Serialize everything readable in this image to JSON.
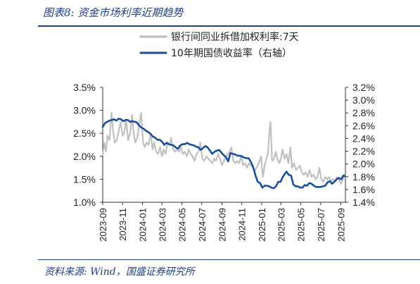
{
  "header": {
    "title": "图表8:  资金市场利率近期趋势"
  },
  "footer": {
    "source": "资料来源:  Wind，国盛证券研究所"
  },
  "colors": {
    "accent": "#1f3f86",
    "series_ibor": "#c0c0c0",
    "series_bond": "#1a4e9e"
  },
  "chart_data": {
    "type": "line",
    "legend_position": "top-center",
    "grid": false,
    "x_ticks": [
      "2023-09",
      "2023-11",
      "2024-01",
      "2024-03",
      "2024-05",
      "2024-07",
      "2024-09",
      "2024-11",
      "2025-01",
      "2025-03",
      "2025-05",
      "2025-07",
      "2025-09"
    ],
    "xlim": [
      "2023-09-01",
      "2025-09-15"
    ],
    "left_axis": {
      "ylim": [
        1.0,
        3.5
      ],
      "ticks": [
        "1.0%",
        "1.5%",
        "2.0%",
        "2.5%",
        "3.0%",
        "3.5%"
      ]
    },
    "right_axis": {
      "ylim": [
        1.4,
        3.2
      ],
      "ticks": [
        "1.4%",
        "1.6%",
        "1.8%",
        "2.0%",
        "2.2%",
        "2.4%",
        "2.6%",
        "2.8%",
        "3.0%",
        "3.2%"
      ]
    },
    "series": [
      {
        "name": "银行间同业拆借加权利率:7天",
        "axis": "left",
        "color": "#c0c0c0",
        "points": [
          [
            "2023-09-01",
            2.02
          ],
          [
            "2023-09-06",
            2.3
          ],
          [
            "2023-09-11",
            2.1
          ],
          [
            "2023-09-16",
            2.45
          ],
          [
            "2023-09-22",
            2.35
          ],
          [
            "2023-09-28",
            2.95
          ],
          [
            "2023-10-03",
            2.55
          ],
          [
            "2023-10-08",
            2.3
          ],
          [
            "2023-10-14",
            2.35
          ],
          [
            "2023-10-20",
            2.55
          ],
          [
            "2023-10-26",
            2.75
          ],
          [
            "2023-11-01",
            2.45
          ],
          [
            "2023-11-06",
            2.5
          ],
          [
            "2023-11-12",
            2.8
          ],
          [
            "2023-11-18",
            2.35
          ],
          [
            "2023-11-24",
            2.5
          ],
          [
            "2023-11-30",
            2.9
          ],
          [
            "2023-12-05",
            2.5
          ],
          [
            "2023-12-10",
            2.3
          ],
          [
            "2023-12-16",
            2.4
          ],
          [
            "2023-12-22",
            2.7
          ],
          [
            "2023-12-28",
            2.95
          ],
          [
            "2024-01-03",
            2.3
          ],
          [
            "2024-01-08",
            2.2
          ],
          [
            "2024-01-14",
            2.3
          ],
          [
            "2024-01-20",
            2.25
          ],
          [
            "2024-01-26",
            2.5
          ],
          [
            "2024-02-01",
            2.15
          ],
          [
            "2024-02-06",
            2.3
          ],
          [
            "2024-02-12",
            2.1
          ],
          [
            "2024-02-18",
            2.05
          ],
          [
            "2024-02-24",
            2.2
          ],
          [
            "2024-03-01",
            2.0
          ],
          [
            "2024-03-06",
            2.15
          ],
          [
            "2024-03-12",
            2.05
          ],
          [
            "2024-03-18",
            2.3
          ],
          [
            "2024-03-24",
            2.25
          ],
          [
            "2024-03-29",
            2.4
          ],
          [
            "2024-04-04",
            2.15
          ],
          [
            "2024-04-10",
            2.1
          ],
          [
            "2024-04-16",
            2.15
          ],
          [
            "2024-04-22",
            2.1
          ],
          [
            "2024-04-28",
            2.2
          ],
          [
            "2024-05-04",
            2.05
          ],
          [
            "2024-05-10",
            2.1
          ],
          [
            "2024-05-16",
            2.0
          ],
          [
            "2024-05-22",
            2.15
          ],
          [
            "2024-05-28",
            2.05
          ],
          [
            "2024-06-03",
            2.0
          ],
          [
            "2024-06-09",
            1.9
          ],
          [
            "2024-06-15",
            2.05
          ],
          [
            "2024-06-21",
            2.1
          ],
          [
            "2024-06-27",
            2.3
          ],
          [
            "2024-07-03",
            1.95
          ],
          [
            "2024-07-09",
            1.9
          ],
          [
            "2024-07-15",
            2.0
          ],
          [
            "2024-07-21",
            1.95
          ],
          [
            "2024-07-27",
            1.9
          ],
          [
            "2024-08-02",
            1.85
          ],
          [
            "2024-08-08",
            1.95
          ],
          [
            "2024-08-14",
            1.9
          ],
          [
            "2024-08-20",
            2.05
          ],
          [
            "2024-08-26",
            1.95
          ],
          [
            "2024-09-01",
            1.8
          ],
          [
            "2024-09-07",
            1.9
          ],
          [
            "2024-09-13",
            2.0
          ],
          [
            "2024-09-19",
            2.05
          ],
          [
            "2024-09-25",
            2.1
          ],
          [
            "2024-09-30",
            2.2
          ],
          [
            "2024-10-06",
            1.9
          ],
          [
            "2024-10-12",
            1.85
          ],
          [
            "2024-10-18",
            1.9
          ],
          [
            "2024-10-24",
            1.85
          ],
          [
            "2024-10-30",
            2.0
          ],
          [
            "2024-11-05",
            1.8
          ],
          [
            "2024-11-11",
            1.85
          ],
          [
            "2024-11-17",
            1.75
          ],
          [
            "2024-11-23",
            1.85
          ],
          [
            "2024-11-29",
            1.8
          ],
          [
            "2024-12-05",
            1.75
          ],
          [
            "2024-12-11",
            1.7
          ],
          [
            "2024-12-17",
            1.75
          ],
          [
            "2024-12-23",
            1.85
          ],
          [
            "2024-12-30",
            2.0
          ],
          [
            "2025-01-05",
            1.55
          ],
          [
            "2025-01-10",
            1.8
          ],
          [
            "2025-01-15",
            1.95
          ],
          [
            "2025-01-20",
            2.05
          ],
          [
            "2025-01-25",
            2.55
          ],
          [
            "2025-01-28",
            2.75
          ],
          [
            "2025-02-02",
            1.9
          ],
          [
            "2025-02-08",
            1.95
          ],
          [
            "2025-02-13",
            2.1
          ],
          [
            "2025-02-18",
            1.95
          ],
          [
            "2025-02-24",
            1.85
          ],
          [
            "2025-03-01",
            1.95
          ],
          [
            "2025-03-06",
            2.15
          ],
          [
            "2025-03-12",
            1.95
          ],
          [
            "2025-03-18",
            2.05
          ],
          [
            "2025-03-24",
            1.85
          ],
          [
            "2025-03-30",
            2.2
          ],
          [
            "2025-04-04",
            1.75
          ],
          [
            "2025-04-10",
            1.85
          ],
          [
            "2025-04-16",
            1.7
          ],
          [
            "2025-04-22",
            1.75
          ],
          [
            "2025-04-28",
            1.8
          ],
          [
            "2025-05-04",
            1.65
          ],
          [
            "2025-05-10",
            1.6
          ],
          [
            "2025-05-16",
            1.65
          ],
          [
            "2025-05-22",
            1.55
          ],
          [
            "2025-05-28",
            1.7
          ],
          [
            "2025-06-03",
            1.55
          ],
          [
            "2025-06-09",
            1.6
          ],
          [
            "2025-06-15",
            1.5
          ],
          [
            "2025-06-21",
            1.55
          ],
          [
            "2025-06-27",
            1.75
          ],
          [
            "2025-07-03",
            1.5
          ],
          [
            "2025-07-09",
            1.45
          ],
          [
            "2025-07-15",
            1.55
          ],
          [
            "2025-07-21",
            1.5
          ],
          [
            "2025-07-27",
            1.55
          ],
          [
            "2025-08-02",
            1.45
          ],
          [
            "2025-08-08",
            1.5
          ],
          [
            "2025-08-14",
            1.45
          ],
          [
            "2025-08-20",
            1.55
          ],
          [
            "2025-08-26",
            1.5
          ],
          [
            "2025-09-01",
            1.4
          ],
          [
            "2025-09-07",
            1.5
          ],
          [
            "2025-09-12",
            1.6
          ]
        ]
      },
      {
        "name": "10年期国债收益率（右轴）",
        "axis": "right",
        "color": "#1a4e9e",
        "points": [
          [
            "2023-09-01",
            2.58
          ],
          [
            "2023-09-08",
            2.64
          ],
          [
            "2023-09-15",
            2.66
          ],
          [
            "2023-09-22",
            2.68
          ],
          [
            "2023-09-29",
            2.69
          ],
          [
            "2023-10-06",
            2.7
          ],
          [
            "2023-10-13",
            2.68
          ],
          [
            "2023-10-20",
            2.71
          ],
          [
            "2023-10-27",
            2.7
          ],
          [
            "2023-11-03",
            2.67
          ],
          [
            "2023-11-10",
            2.69
          ],
          [
            "2023-11-17",
            2.69
          ],
          [
            "2023-11-24",
            2.66
          ],
          [
            "2023-12-01",
            2.67
          ],
          [
            "2023-12-08",
            2.66
          ],
          [
            "2023-12-15",
            2.65
          ],
          [
            "2023-12-22",
            2.6
          ],
          [
            "2023-12-29",
            2.57
          ],
          [
            "2024-01-05",
            2.55
          ],
          [
            "2024-01-12",
            2.52
          ],
          [
            "2024-01-19",
            2.5
          ],
          [
            "2024-01-26",
            2.47
          ],
          [
            "2024-02-02",
            2.43
          ],
          [
            "2024-02-09",
            2.41
          ],
          [
            "2024-02-16",
            2.38
          ],
          [
            "2024-02-23",
            2.38
          ],
          [
            "2024-03-01",
            2.35
          ],
          [
            "2024-03-08",
            2.3
          ],
          [
            "2024-03-15",
            2.33
          ],
          [
            "2024-03-22",
            2.31
          ],
          [
            "2024-03-29",
            2.3
          ],
          [
            "2024-04-05",
            2.29
          ],
          [
            "2024-04-12",
            2.26
          ],
          [
            "2024-04-19",
            2.24
          ],
          [
            "2024-04-26",
            2.29
          ],
          [
            "2024-05-03",
            2.31
          ],
          [
            "2024-05-10",
            2.31
          ],
          [
            "2024-05-17",
            2.33
          ],
          [
            "2024-05-24",
            2.31
          ],
          [
            "2024-05-31",
            2.3
          ],
          [
            "2024-06-07",
            2.29
          ],
          [
            "2024-06-14",
            2.27
          ],
          [
            "2024-06-21",
            2.26
          ],
          [
            "2024-06-28",
            2.22
          ],
          [
            "2024-07-05",
            2.25
          ],
          [
            "2024-07-12",
            2.28
          ],
          [
            "2024-07-19",
            2.26
          ],
          [
            "2024-07-26",
            2.21
          ],
          [
            "2024-08-02",
            2.16
          ],
          [
            "2024-08-09",
            2.19
          ],
          [
            "2024-08-16",
            2.21
          ],
          [
            "2024-08-23",
            2.22
          ],
          [
            "2024-08-30",
            2.18
          ],
          [
            "2024-09-06",
            2.14
          ],
          [
            "2024-09-13",
            2.11
          ],
          [
            "2024-09-20",
            2.04
          ],
          [
            "2024-09-27",
            2.17
          ],
          [
            "2024-10-04",
            2.16
          ],
          [
            "2024-10-11",
            2.15
          ],
          [
            "2024-10-18",
            2.13
          ],
          [
            "2024-10-25",
            2.13
          ],
          [
            "2024-11-01",
            2.12
          ],
          [
            "2024-11-08",
            2.1
          ],
          [
            "2024-11-15",
            2.09
          ],
          [
            "2024-11-22",
            2.09
          ],
          [
            "2024-11-29",
            2.03
          ],
          [
            "2024-12-06",
            1.95
          ],
          [
            "2024-12-13",
            1.82
          ],
          [
            "2024-12-20",
            1.72
          ],
          [
            "2024-12-27",
            1.7
          ],
          [
            "2025-01-03",
            1.63
          ],
          [
            "2025-01-10",
            1.66
          ],
          [
            "2025-01-17",
            1.66
          ],
          [
            "2025-01-24",
            1.65
          ],
          [
            "2025-01-31",
            1.63
          ],
          [
            "2025-02-07",
            1.62
          ],
          [
            "2025-02-14",
            1.65
          ],
          [
            "2025-02-21",
            1.72
          ],
          [
            "2025-02-28",
            1.72
          ],
          [
            "2025-03-07",
            1.8
          ],
          [
            "2025-03-14",
            1.85
          ],
          [
            "2025-03-18",
            1.88
          ],
          [
            "2025-03-25",
            1.83
          ],
          [
            "2025-04-01",
            1.82
          ],
          [
            "2025-04-08",
            1.68
          ],
          [
            "2025-04-15",
            1.65
          ],
          [
            "2025-04-22",
            1.65
          ],
          [
            "2025-04-29",
            1.63
          ],
          [
            "2025-05-06",
            1.63
          ],
          [
            "2025-05-13",
            1.67
          ],
          [
            "2025-05-20",
            1.66
          ],
          [
            "2025-05-27",
            1.7
          ],
          [
            "2025-06-03",
            1.69
          ],
          [
            "2025-06-10",
            1.66
          ],
          [
            "2025-06-17",
            1.64
          ],
          [
            "2025-06-24",
            1.64
          ],
          [
            "2025-07-01",
            1.64
          ],
          [
            "2025-07-08",
            1.65
          ],
          [
            "2025-07-15",
            1.66
          ],
          [
            "2025-07-22",
            1.71
          ],
          [
            "2025-07-29",
            1.73
          ],
          [
            "2025-08-05",
            1.69
          ],
          [
            "2025-08-12",
            1.72
          ],
          [
            "2025-08-19",
            1.76
          ],
          [
            "2025-08-26",
            1.78
          ],
          [
            "2025-09-02",
            1.76
          ],
          [
            "2025-09-09",
            1.82
          ],
          [
            "2025-09-12",
            1.81
          ]
        ]
      }
    ]
  }
}
